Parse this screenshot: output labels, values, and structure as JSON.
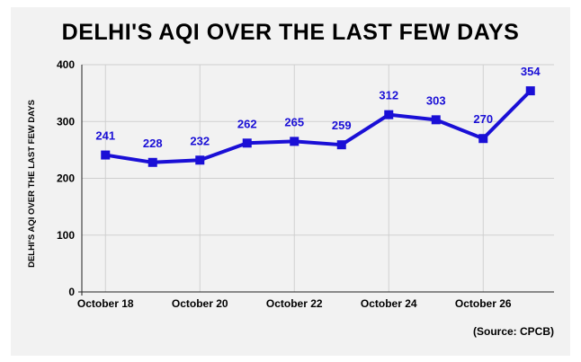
{
  "chart_data": {
    "type": "line",
    "title": "DELHI'S AQI OVER THE LAST FEW DAYS",
    "ylabel": "DELHI'S AQI OVER THE LAST FEW DAYS",
    "xlabel": "",
    "ylim": [
      0,
      400
    ],
    "yticks": [
      0,
      100,
      200,
      300,
      400
    ],
    "x_tick_labels": [
      "October 18",
      "October 20",
      "October 22",
      "October 24",
      "October 26"
    ],
    "grid": true,
    "series": [
      {
        "values": [
          241,
          228,
          232,
          262,
          265,
          259,
          312,
          303,
          270,
          354
        ],
        "data_labels": [
          "241",
          "228",
          "232",
          "262",
          "265",
          "259",
          "312",
          "303",
          "270",
          "354"
        ]
      }
    ],
    "colors": {
      "line": "#1a0fd6",
      "labels": "#1a0fd6",
      "grid": "#cfcfcf",
      "background": "#f2f2f2"
    }
  },
  "source_text": "(Source: CPCB)"
}
